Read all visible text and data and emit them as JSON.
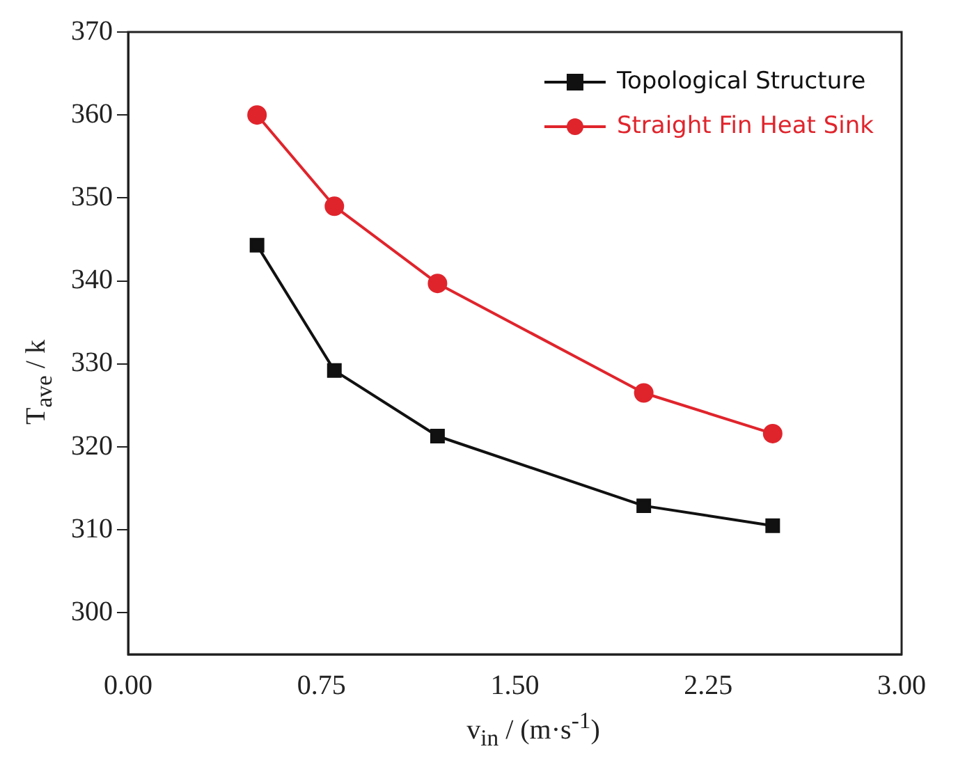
{
  "chart_data": {
    "type": "line",
    "xlabel": "v$_{in}$ / (m·s$^{-1}$)",
    "ylabel": "T$_{ave}$ / k",
    "xlim": [
      0,
      3
    ],
    "xticks": [
      {
        "value": 0,
        "label": "0.00"
      },
      {
        "value": 0.75,
        "label": "0.75"
      },
      {
        "value": 1.5,
        "label": "1.50"
      },
      {
        "value": 2.25,
        "label": "2.25"
      },
      {
        "value": 3,
        "label": "3.00"
      }
    ],
    "ylim": [
      295,
      370
    ],
    "yticks": [
      300,
      310,
      320,
      330,
      340,
      350,
      360,
      370
    ],
    "x": [
      0.5,
      0.8,
      1.2,
      2.0,
      2.5
    ],
    "series": [
      {
        "name": "Topological Structure",
        "color": "#111111",
        "marker": "square",
        "values": [
          344.3,
          329.2,
          321.3,
          312.9,
          310.5
        ]
      },
      {
        "name": "Straight Fin Heat Sink",
        "color": "#e0242c",
        "marker": "circle",
        "values": [
          360,
          349,
          339.7,
          326.5,
          321.6
        ]
      }
    ],
    "grid": false,
    "legend": "top right",
    "line_style": "solid"
  }
}
